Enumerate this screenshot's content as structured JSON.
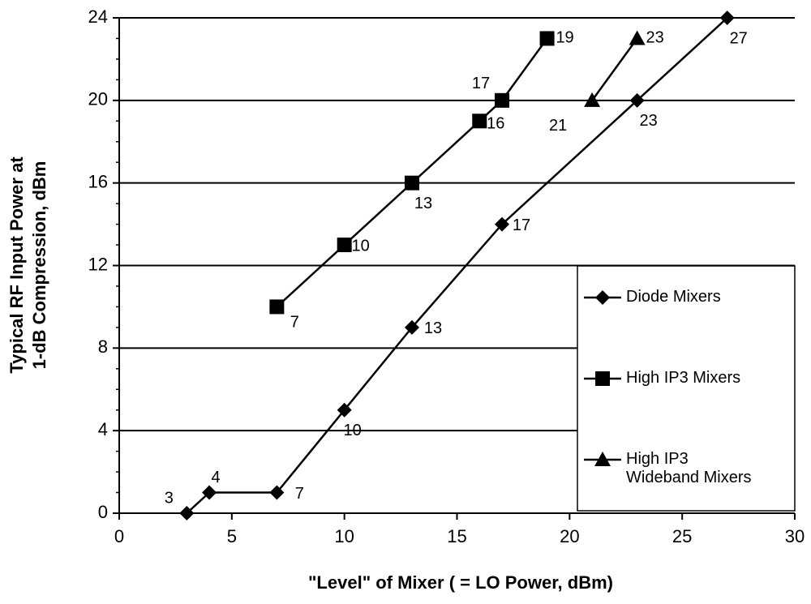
{
  "chart_data": {
    "type": "line",
    "x_label": "\"Level\" of Mixer ( = LO Power, dBm)",
    "y_label": [
      "Typical RF Input Power at",
      "1-dB Compression, dBm"
    ],
    "xlim": [
      0,
      30
    ],
    "xticks": [
      0,
      5,
      10,
      15,
      20,
      25,
      30
    ],
    "ylim": [
      0,
      24
    ],
    "yticks": [
      0,
      4,
      8,
      12,
      16,
      20,
      24
    ],
    "grid": true,
    "legend": "lower right",
    "series": [
      {
        "name": "Diode Mixers",
        "color": "#000000",
        "marker": "diamond",
        "x": [
          3,
          4,
          7,
          10,
          13,
          17,
          23,
          27
        ],
        "values": [
          0,
          1,
          1,
          5,
          9,
          14,
          20,
          24
        ]
      },
      {
        "name": "High IP3 Mixers",
        "color": "#000000",
        "marker": "square",
        "x": [
          7,
          10,
          13,
          16,
          17,
          19
        ],
        "values": [
          10,
          13,
          16,
          19,
          20,
          23
        ]
      },
      {
        "name": "High IP3 Wideband Mixers",
        "color": "#000000",
        "marker": "triangle",
        "x": [
          21,
          23
        ],
        "values": [
          20,
          23
        ]
      }
    ]
  }
}
